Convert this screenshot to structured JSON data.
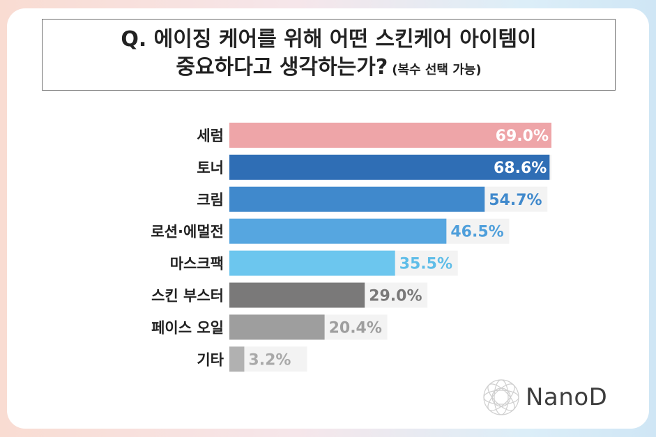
{
  "title": {
    "line1": "Q. 에이징 케어를 위해 어떤 스킨케어 아이템이",
    "line2": "중요하다고 생각하는가?",
    "note": "(복수 선택 가능)"
  },
  "chart_data": {
    "type": "bar",
    "orientation": "horizontal",
    "categories": [
      "세럼",
      "토너",
      "크림",
      "로션·에멀전",
      "마스크팩",
      "스킨 부스터",
      "페이스 오일",
      "기타"
    ],
    "values": [
      69.0,
      68.6,
      54.7,
      46.5,
      35.5,
      29.0,
      20.4,
      3.2
    ],
    "value_labels": [
      "69.0%",
      "68.6%",
      "54.7%",
      "46.5%",
      "35.5%",
      "29.0%",
      "20.4%",
      "3.2%"
    ],
    "unit": "%",
    "bar_colors": [
      "#eea5a8",
      "#2f6eb5",
      "#4089cc",
      "#56a6e0",
      "#6cc6ee",
      "#7a7979",
      "#9e9e9e",
      "#b1b1b1"
    ],
    "label_colors": [
      "#ffffff",
      "#ffffff",
      "#4089cc",
      "#4f9fdb",
      "#5fbde8",
      "#7a7979",
      "#9e9e9e",
      "#a9a9a9"
    ],
    "grid": false,
    "legend": "none"
  },
  "logo": {
    "text": "NanoD",
    "icon": "diamond-wreath-icon"
  }
}
